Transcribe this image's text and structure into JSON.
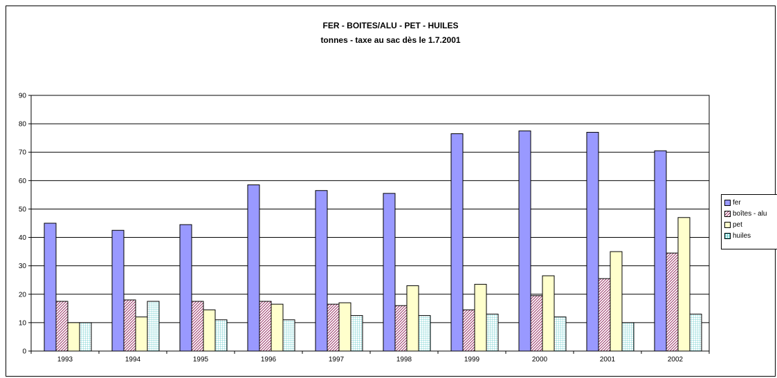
{
  "chart_data": {
    "type": "bar",
    "title": "FER - BOITES/ALU - PET - HUILES",
    "subtitle": "tonnes - taxe au sac dès le 1.7.2001",
    "xlabel": "",
    "ylabel": "",
    "ylim": [
      0,
      90
    ],
    "yticks": [
      0,
      10,
      20,
      30,
      40,
      50,
      60,
      70,
      80,
      90
    ],
    "grid": true,
    "legend_position": "right",
    "categories": [
      "1993",
      "1994",
      "1995",
      "1996",
      "1997",
      "1998",
      "1999",
      "2000",
      "2001",
      "2002"
    ],
    "series": [
      {
        "name": "fer",
        "color": "#9999ff",
        "pattern": "solid",
        "values": [
          45,
          42.5,
          44.5,
          58.5,
          56.5,
          55.5,
          76.5,
          77.5,
          77,
          70.5
        ]
      },
      {
        "name": "boîtes - alu",
        "color": "#993366",
        "pattern": "diagonal-hatch",
        "values": [
          17.5,
          18,
          17.5,
          17.5,
          16.5,
          16,
          14.5,
          19.5,
          25.5,
          34.5
        ]
      },
      {
        "name": "pet",
        "color": "#ffffcc",
        "pattern": "solid",
        "values": [
          10,
          12,
          14.5,
          16.5,
          17,
          23,
          23.5,
          26.5,
          35,
          47
        ]
      },
      {
        "name": "huiles",
        "color": "#ccffff",
        "pattern": "grid-hatch",
        "values": [
          10,
          17.5,
          11,
          11,
          12.5,
          12.5,
          13,
          12,
          10,
          13
        ]
      }
    ]
  }
}
